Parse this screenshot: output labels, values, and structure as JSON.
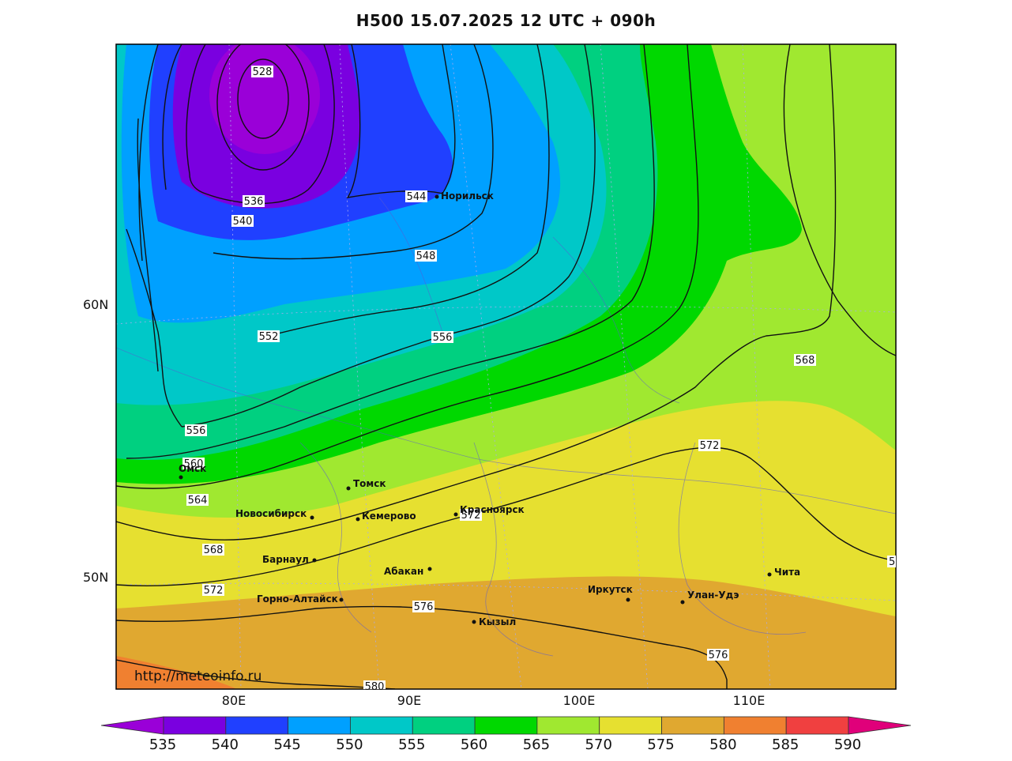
{
  "title": "H500  15.07.2025 12 UTC + 090h",
  "watermark": "http://meteoinfo.ru",
  "lat_labels": [
    "60N",
    "50N"
  ],
  "lon_labels": [
    "80E",
    "90E",
    "100E",
    "110E"
  ],
  "contour_labels": [
    "528",
    "536",
    "540",
    "544",
    "548",
    "552",
    "556",
    "556",
    "560",
    "564",
    "568",
    "568",
    "572",
    "572",
    "576",
    "576",
    "580",
    "5"
  ],
  "cities": [
    "Норильск",
    "Омск",
    "Томск",
    "Новосибирск",
    "Кемерово",
    "Красноярск",
    "Барнаул",
    "Абакан",
    "Горно-Алтайск",
    "Кызыл",
    "Иркутск",
    "Улан-Удэ",
    "Чита"
  ],
  "colorbar": {
    "ticks": [
      "535",
      "540",
      "545",
      "550",
      "555",
      "560",
      "565",
      "570",
      "575",
      "580",
      "585",
      "590"
    ],
    "colors": [
      "#9a00d8",
      "#7a00e0",
      "#2040ff",
      "#00a0ff",
      "#00c8c8",
      "#00d080",
      "#00d800",
      "#a0e830",
      "#e6e030",
      "#e0a830",
      "#f08030",
      "#f04040",
      "#e0007a"
    ]
  },
  "colors": {
    "frame": "#000000",
    "contour": "#111111"
  }
}
